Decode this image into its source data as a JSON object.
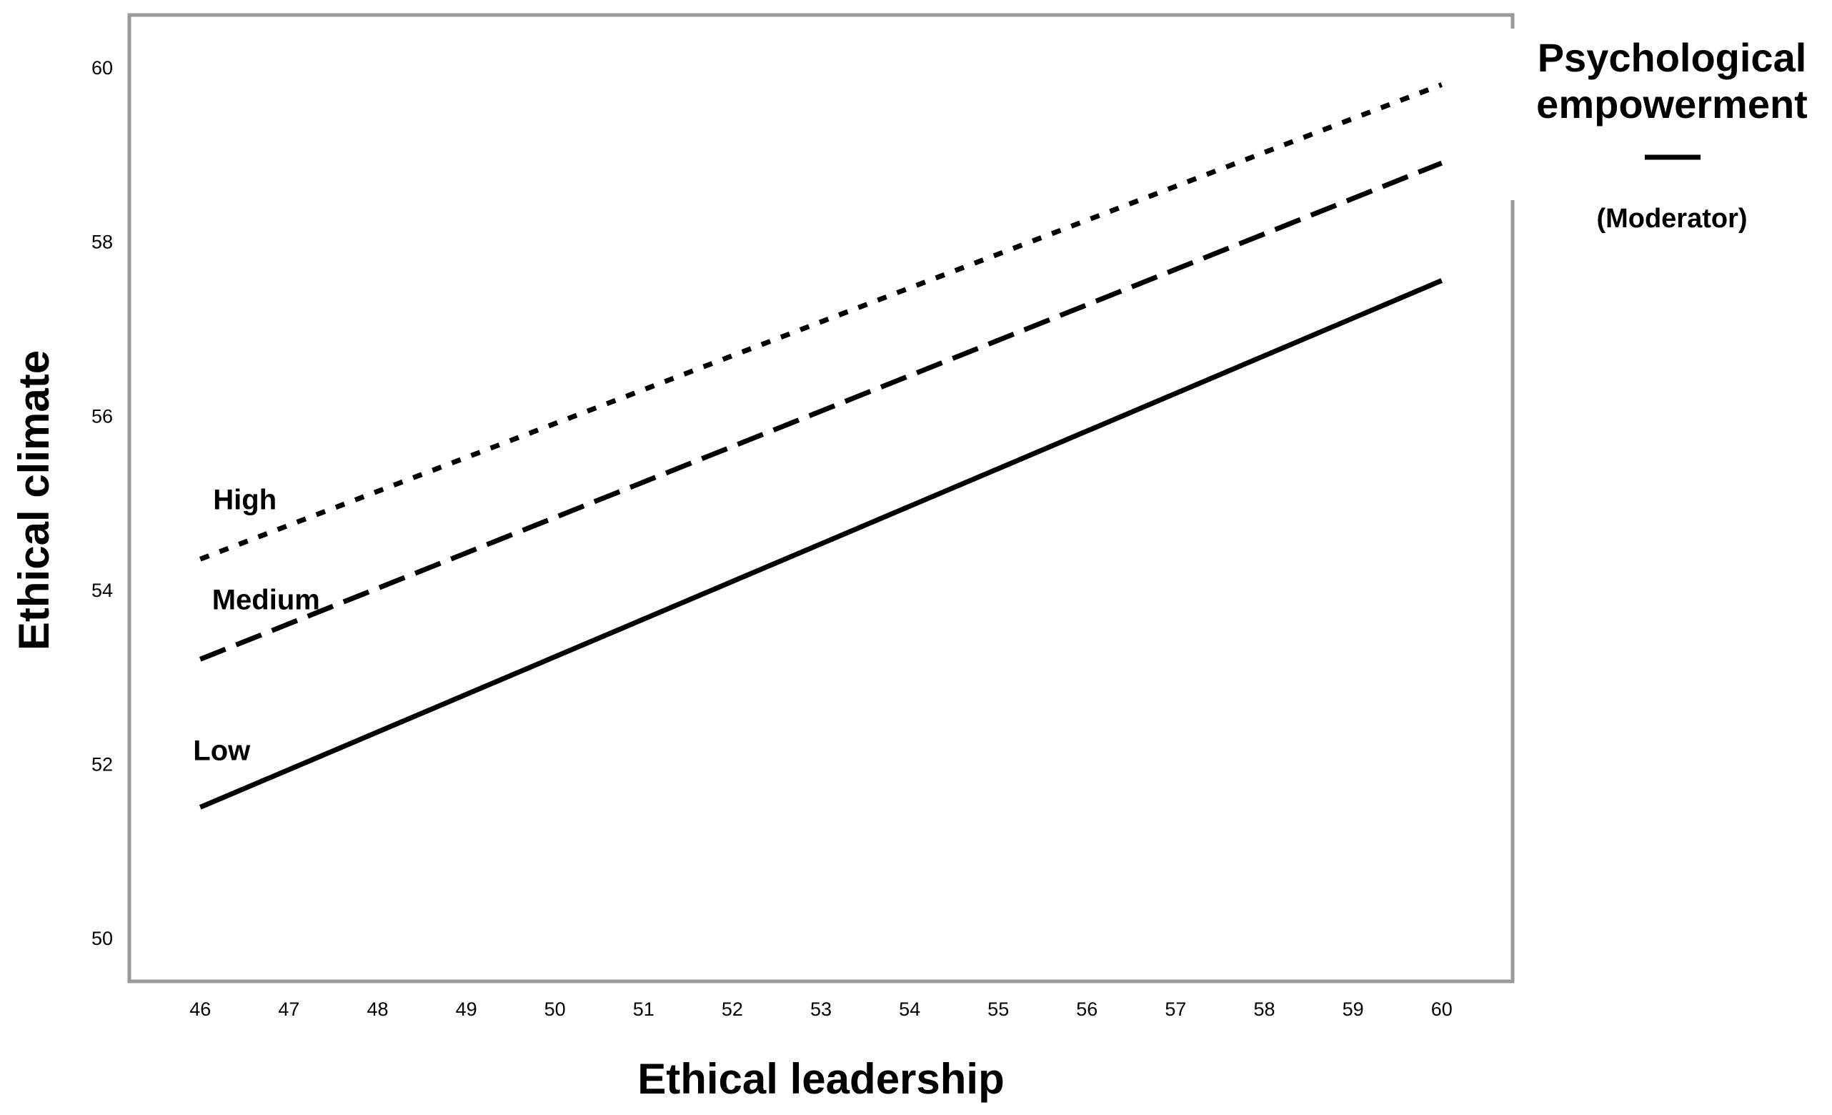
{
  "chart_data": {
    "type": "line",
    "xlabel": "Ethical leadership",
    "ylabel": "Ethical climate",
    "xlim": [
      45.2,
      60.8
    ],
    "ylim": [
      49.5,
      60.6
    ],
    "x_ticks": [
      46,
      47,
      48,
      49,
      50,
      51,
      52,
      53,
      54,
      55,
      56,
      57,
      58,
      59,
      60
    ],
    "y_ticks": [
      50,
      52,
      54,
      56,
      58,
      60
    ],
    "grid": false,
    "series": [
      {
        "name": "High",
        "line_style": "dotted",
        "color": "#000000",
        "x": [
          46,
          60
        ],
        "y": [
          54.35,
          59.8
        ]
      },
      {
        "name": "Medium",
        "line_style": "dashed",
        "color": "#000000",
        "x": [
          46,
          60
        ],
        "y": [
          53.2,
          58.9
        ]
      },
      {
        "name": "Low",
        "line_style": "solid",
        "color": "#000000",
        "x": [
          46,
          60
        ],
        "y": [
          51.5,
          57.55
        ]
      }
    ],
    "legend": {
      "placement": "top-right",
      "title_line1": "Psychological",
      "title_line2": "empowerment",
      "subtitle": "(Moderator)"
    }
  }
}
